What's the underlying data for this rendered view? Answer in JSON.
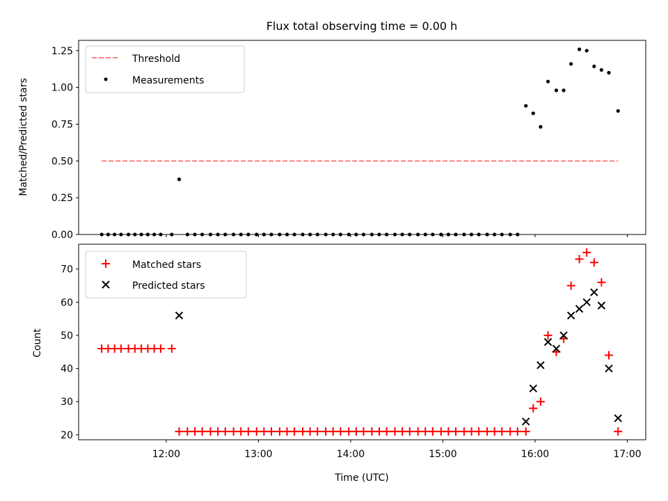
{
  "chart_data": {
    "title": "Flux total observing time = 0.00 h",
    "xlabel": "Time (UTC)",
    "x_unit": "hours UTC",
    "xlim": [
      11.05,
      17.2
    ],
    "x_ticks": [
      {
        "value": 12,
        "label": "12:00"
      },
      {
        "value": 13,
        "label": "13:00"
      },
      {
        "value": 14,
        "label": "14:00"
      },
      {
        "value": 15,
        "label": "15:00"
      },
      {
        "value": 16,
        "label": "16:00"
      },
      {
        "value": 17,
        "label": "17:00"
      }
    ],
    "panels": [
      {
        "type": "scatter",
        "ylabel": "Matched/Predicted stars",
        "ylim": [
          0,
          1.32
        ],
        "y_ticks": [
          "0.00",
          "0.25",
          "0.50",
          "0.75",
          "1.00",
          "1.25"
        ],
        "legend_position": "top-left",
        "series": [
          {
            "name": "Threshold",
            "style": "dashed-line",
            "color": "#ff7f7f",
            "x": [
              11.3,
              16.9
            ],
            "y": [
              0.5,
              0.5
            ]
          },
          {
            "name": "Measurements",
            "style": "dot",
            "color": "#000000",
            "x": [
              11.3,
              11.37,
              11.44,
              11.51,
              11.59,
              11.66,
              11.73,
              11.8,
              11.87,
              11.94,
              12.06,
              12.14,
              12.23,
              12.31,
              12.39,
              12.48,
              12.56,
              12.64,
              12.73,
              12.81,
              12.89,
              12.98,
              13.06,
              13.14,
              13.23,
              13.31,
              13.39,
              13.48,
              13.56,
              13.64,
              13.73,
              13.81,
              13.89,
              13.98,
              14.06,
              14.14,
              14.23,
              14.31,
              14.39,
              14.48,
              14.56,
              14.64,
              14.73,
              14.81,
              14.89,
              14.98,
              15.06,
              15.14,
              15.23,
              15.31,
              15.39,
              15.48,
              15.56,
              15.64,
              15.73,
              15.81,
              15.9,
              15.98,
              16.06,
              16.14,
              16.23,
              16.31,
              16.39,
              16.48,
              16.56,
              16.64,
              16.72,
              16.8,
              16.9
            ],
            "y": [
              0,
              0,
              0,
              0,
              0,
              0,
              0,
              0,
              0,
              0,
              0,
              0.375,
              0,
              0,
              0,
              0,
              0,
              0,
              0,
              0,
              0,
              0,
              0,
              0,
              0,
              0,
              0,
              0,
              0,
              0,
              0,
              0,
              0,
              0,
              0,
              0,
              0,
              0,
              0,
              0,
              0,
              0,
              0,
              0,
              0,
              0,
              0,
              0,
              0,
              0,
              0,
              0,
              0,
              0,
              0,
              0,
              0.875,
              0.824,
              0.732,
              1.04,
              0.98,
              0.98,
              1.16,
              1.259,
              1.25,
              1.143,
              1.119,
              1.1,
              0.84
            ]
          }
        ]
      },
      {
        "type": "scatter",
        "ylabel": "Count",
        "ylim": [
          18.5,
          77.5
        ],
        "y_ticks": [
          "20",
          "30",
          "40",
          "50",
          "60",
          "70"
        ],
        "legend_position": "top-left",
        "series": [
          {
            "name": "Matched stars",
            "marker": "+",
            "color": "#ff0000",
            "x": [
              11.3,
              11.37,
              11.44,
              11.51,
              11.59,
              11.66,
              11.73,
              11.8,
              11.87,
              11.94,
              12.06,
              12.14,
              12.23,
              12.31,
              12.39,
              12.48,
              12.56,
              12.64,
              12.73,
              12.81,
              12.89,
              12.98,
              13.06,
              13.14,
              13.23,
              13.31,
              13.39,
              13.48,
              13.56,
              13.64,
              13.73,
              13.81,
              13.89,
              13.98,
              14.06,
              14.14,
              14.23,
              14.31,
              14.39,
              14.48,
              14.56,
              14.64,
              14.73,
              14.81,
              14.89,
              14.98,
              15.06,
              15.14,
              15.23,
              15.31,
              15.39,
              15.48,
              15.56,
              15.64,
              15.73,
              15.81,
              15.9,
              15.98,
              16.06,
              16.14,
              16.23,
              16.31,
              16.39,
              16.48,
              16.56,
              16.64,
              16.72,
              16.8,
              16.9
            ],
            "y": [
              46,
              46,
              46,
              46,
              46,
              46,
              46,
              46,
              46,
              46,
              46,
              21,
              21,
              21,
              21,
              21,
              21,
              21,
              21,
              21,
              21,
              21,
              21,
              21,
              21,
              21,
              21,
              21,
              21,
              21,
              21,
              21,
              21,
              21,
              21,
              21,
              21,
              21,
              21,
              21,
              21,
              21,
              21,
              21,
              21,
              21,
              21,
              21,
              21,
              21,
              21,
              21,
              21,
              21,
              21,
              21,
              21,
              28,
              30,
              50,
              45,
              49,
              65,
              73,
              75,
              72,
              66,
              44,
              21
            ]
          },
          {
            "name": "Predicted stars",
            "marker": "x",
            "color": "#000000",
            "x": [
              12.14,
              15.9,
              15.98,
              16.06,
              16.14,
              16.23,
              16.31,
              16.39,
              16.48,
              16.56,
              16.64,
              16.72,
              16.8,
              16.9
            ],
            "y": [
              56,
              24,
              34,
              41,
              48,
              46,
              50,
              56,
              58,
              60,
              63,
              59,
              40,
              25
            ]
          }
        ]
      }
    ]
  }
}
